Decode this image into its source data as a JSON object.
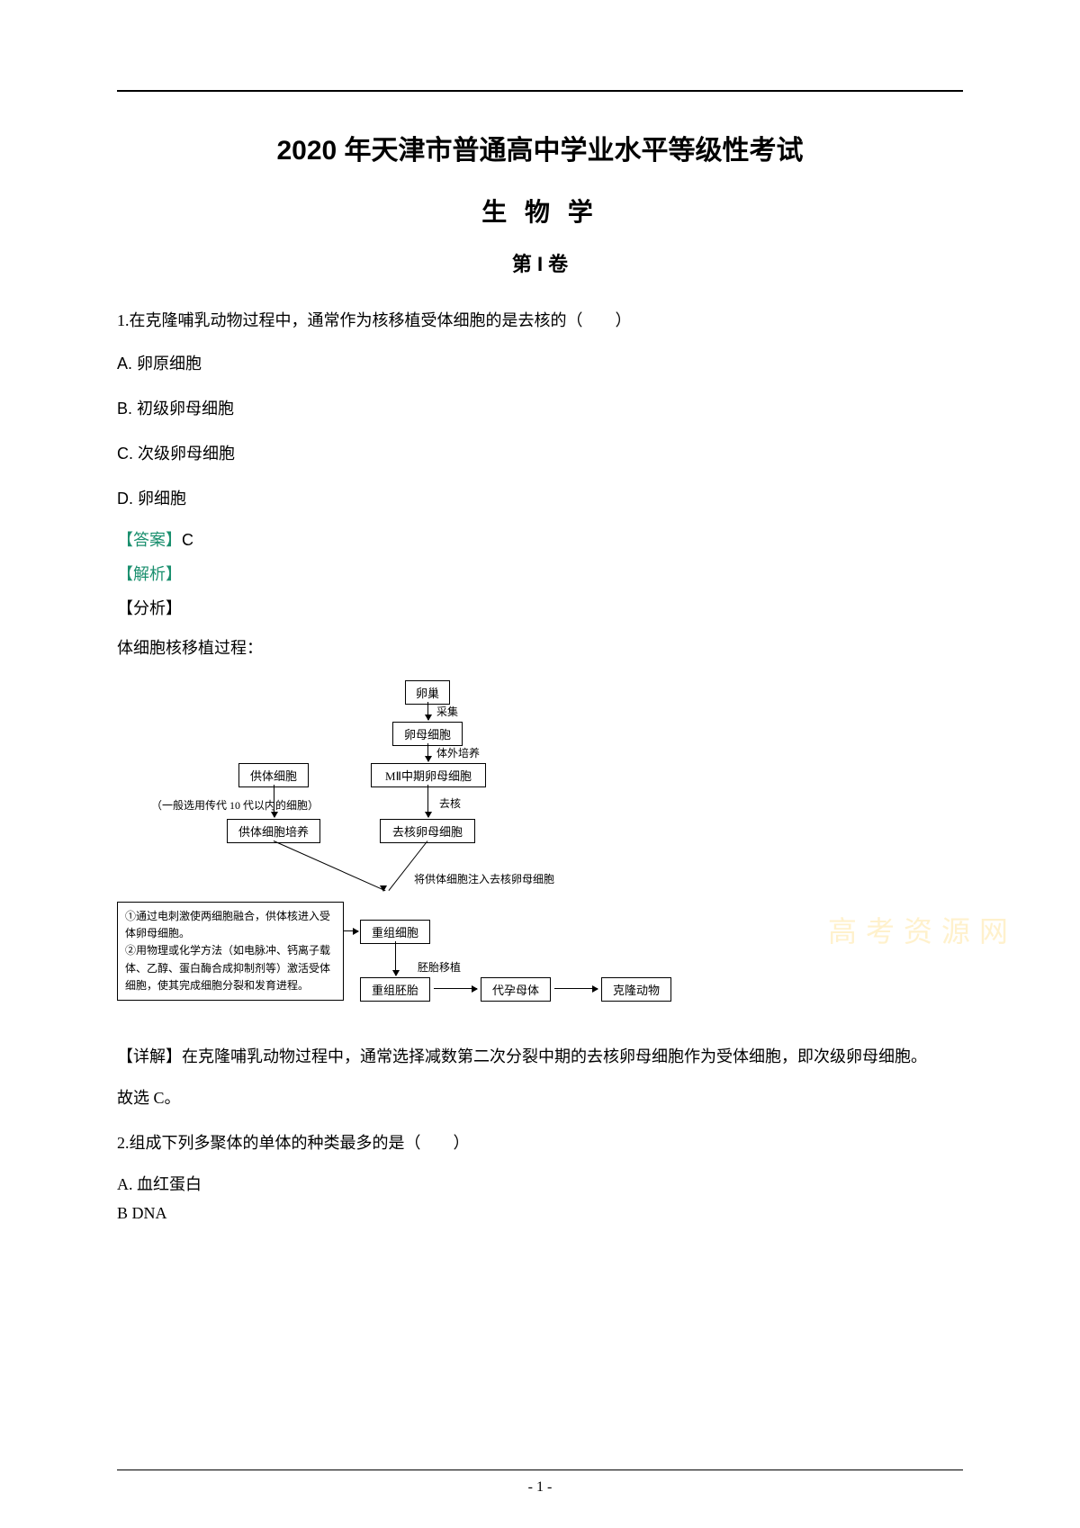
{
  "header": {
    "main_title": "2020 年天津市普通高中学业水平等级性考试",
    "subject": "生 物 学",
    "section": "第 I 卷"
  },
  "q1": {
    "stem": "1.在克隆哺乳动物过程中，通常作为核移植受体细胞的是去核的（　　）",
    "options": {
      "A": "A. 卵原细胞",
      "B": "B. 初级卵母细胞",
      "C": "C. 次级卵母细胞",
      "D": "D. 卵细胞"
    },
    "answer_label": "【答案】",
    "answer_value": "C",
    "analysis_label": "【解析】",
    "fenxi_label": "【分析】",
    "fenxi_text": "体细胞核移植过程：",
    "diagram": {
      "n_ovary": "卵巢",
      "e_collect": "采集",
      "n_egg_mother": "卵母细胞",
      "e_invitro": "体外培养",
      "n_donor": "供体细胞",
      "n_mii": "MⅡ中期卵母细胞",
      "note_gen": "（一般选用传代 10 代以内的细胞）",
      "e_enuc": "去核",
      "n_culture": "供体细胞培养",
      "n_enuc_egg": "去核卵母细胞",
      "e_inject": "将供体细胞注入去核卵母细胞",
      "n_recomb": "重组细胞",
      "e_transfer": "胚胎移植",
      "n_embryo": "重组胚胎",
      "n_surrogate": "代孕母体",
      "n_clone": "克隆动物",
      "note_box": "①通过电刺激使两细胞融合，供体核进入受体卵母细胞。\n②用物理或化学方法（如电脉冲、钙离子载体、乙醇、蛋白酶合成抑制剂等）激活受体细胞，使其完成细胞分裂和发育进程。"
    },
    "detail_label": "【详解】",
    "detail_text": "在克隆哺乳动物过程中，通常选择减数第二次分裂中期的去核卵母细胞作为受体细胞，即次级卵母细胞。",
    "conclusion": "故选 C。"
  },
  "q2": {
    "stem": "2.组成下列多聚体的单体的种类最多的是（　　）",
    "options": {
      "A": "A.  血红蛋白",
      "B": "B  DNA"
    }
  },
  "footer": {
    "page_num": "- 1 -"
  },
  "watermark": "高考资源网",
  "colors": {
    "teal": "#1a8f6e",
    "black": "#000000",
    "wm": "rgba(255,200,50,0.25)"
  }
}
